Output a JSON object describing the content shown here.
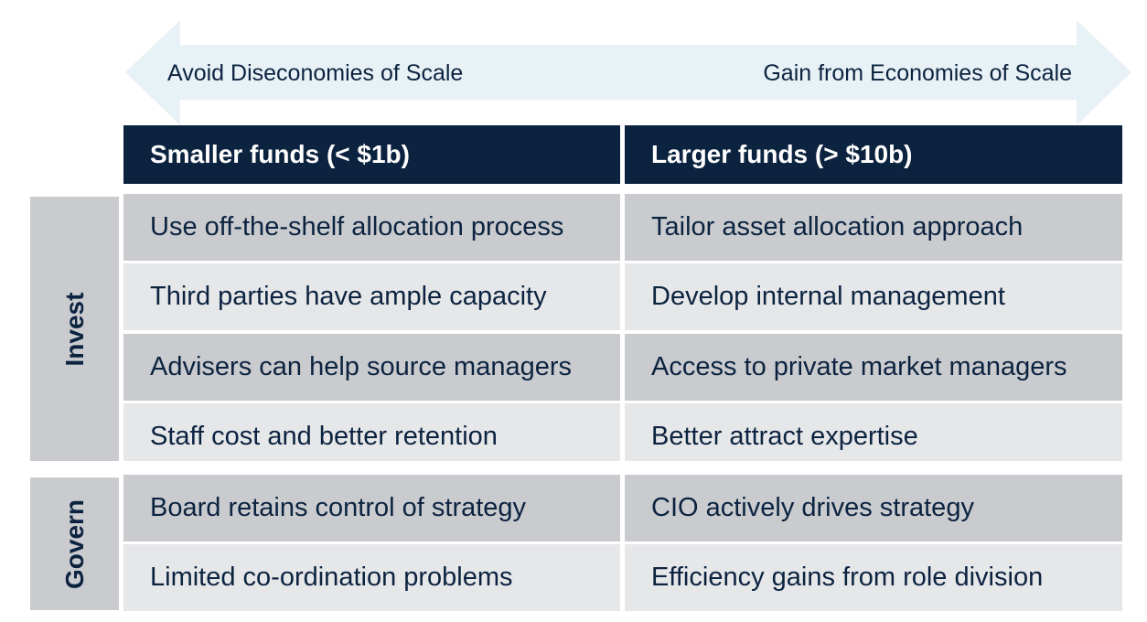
{
  "arrow": {
    "left_label": "Avoid Diseconomies of Scale",
    "right_label": "Gain from Economies of Scale",
    "color": "#e8f1f6"
  },
  "columns": {
    "left_header": "Smaller funds (< $1b)",
    "right_header": "Larger funds (> $10b)",
    "header_color": "#0c2340"
  },
  "groups": [
    {
      "label": "Invest",
      "rows": [
        {
          "left": "Use off-the-shelf allocation process",
          "right": "Tailor asset allocation approach"
        },
        {
          "left": "Third parties have ample capacity",
          "right": "Develop internal management"
        },
        {
          "left": "Advisers can help source managers",
          "right": "Access to private market managers"
        },
        {
          "left": "Staff cost and better retention",
          "right": "Better attract expertise"
        }
      ]
    },
    {
      "label": "Govern",
      "rows": [
        {
          "left": "Board retains control of strategy",
          "right": "CIO actively drives strategy"
        },
        {
          "left": "Limited co-ordination problems",
          "right": "Efficiency gains from role division"
        }
      ]
    }
  ]
}
